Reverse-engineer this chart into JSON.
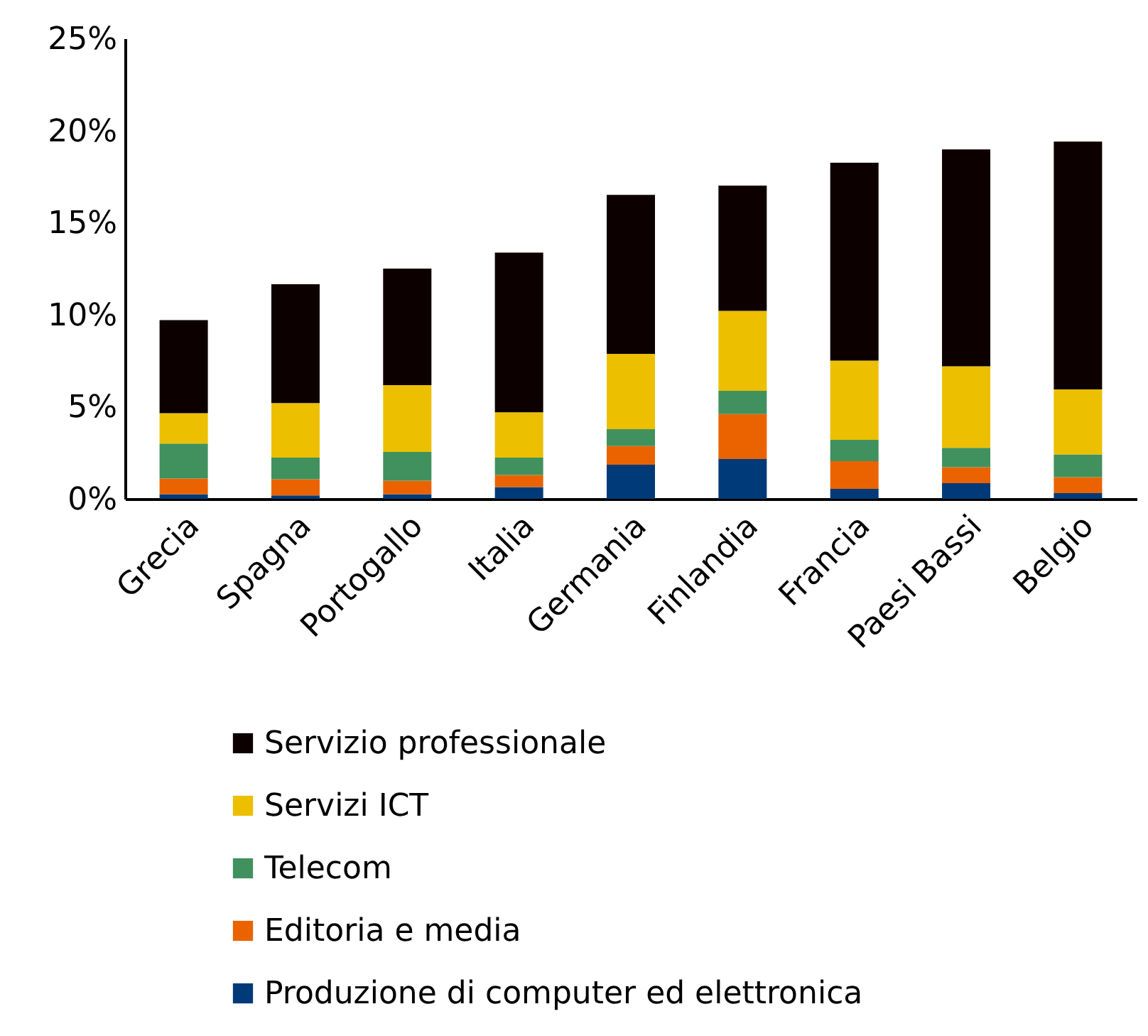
{
  "chart_data": {
    "type": "bar",
    "stacked": true,
    "categories": [
      "Grecia",
      "Spagna",
      "Portogallo",
      "Italia",
      "Germania",
      "Finlandia",
      "Francia",
      "Paesi Bassi",
      "Belgio"
    ],
    "series": [
      {
        "name": "Produzione di computer ed elettronica",
        "color": "#003a78",
        "values": [
          0.25,
          0.18,
          0.25,
          0.64,
          1.85,
          2.16,
          0.54,
          0.85,
          0.31
        ]
      },
      {
        "name": "Editoria e media",
        "color": "#eb6300",
        "values": [
          0.85,
          0.88,
          0.73,
          0.65,
          1.01,
          2.44,
          1.5,
          0.87,
          0.87
        ]
      },
      {
        "name": "Telecom",
        "color": "#41915e",
        "values": [
          1.9,
          1.18,
          1.57,
          0.95,
          0.92,
          1.26,
          1.16,
          1.05,
          1.23
        ]
      },
      {
        "name": "Servizi ICT",
        "color": "#ecbf00",
        "values": [
          1.65,
          2.96,
          3.62,
          2.46,
          4.09,
          4.34,
          4.3,
          4.43,
          3.53
        ]
      },
      {
        "name": "Servizio professionale",
        "color": "#0d0000",
        "values": [
          5.05,
          6.45,
          6.33,
          8.67,
          8.63,
          6.8,
          10.75,
          11.77,
          13.46
        ]
      }
    ],
    "ylim": [
      0,
      25
    ],
    "yticks": [
      {
        "value": 0,
        "label": "0%"
      },
      {
        "value": 5,
        "label": "5%"
      },
      {
        "value": 10,
        "label": "10%"
      },
      {
        "value": 15,
        "label": "15%"
      },
      {
        "value": 20,
        "label": "20%"
      },
      {
        "value": 25,
        "label": "25%"
      }
    ],
    "grid": false,
    "legend": "bottom"
  }
}
